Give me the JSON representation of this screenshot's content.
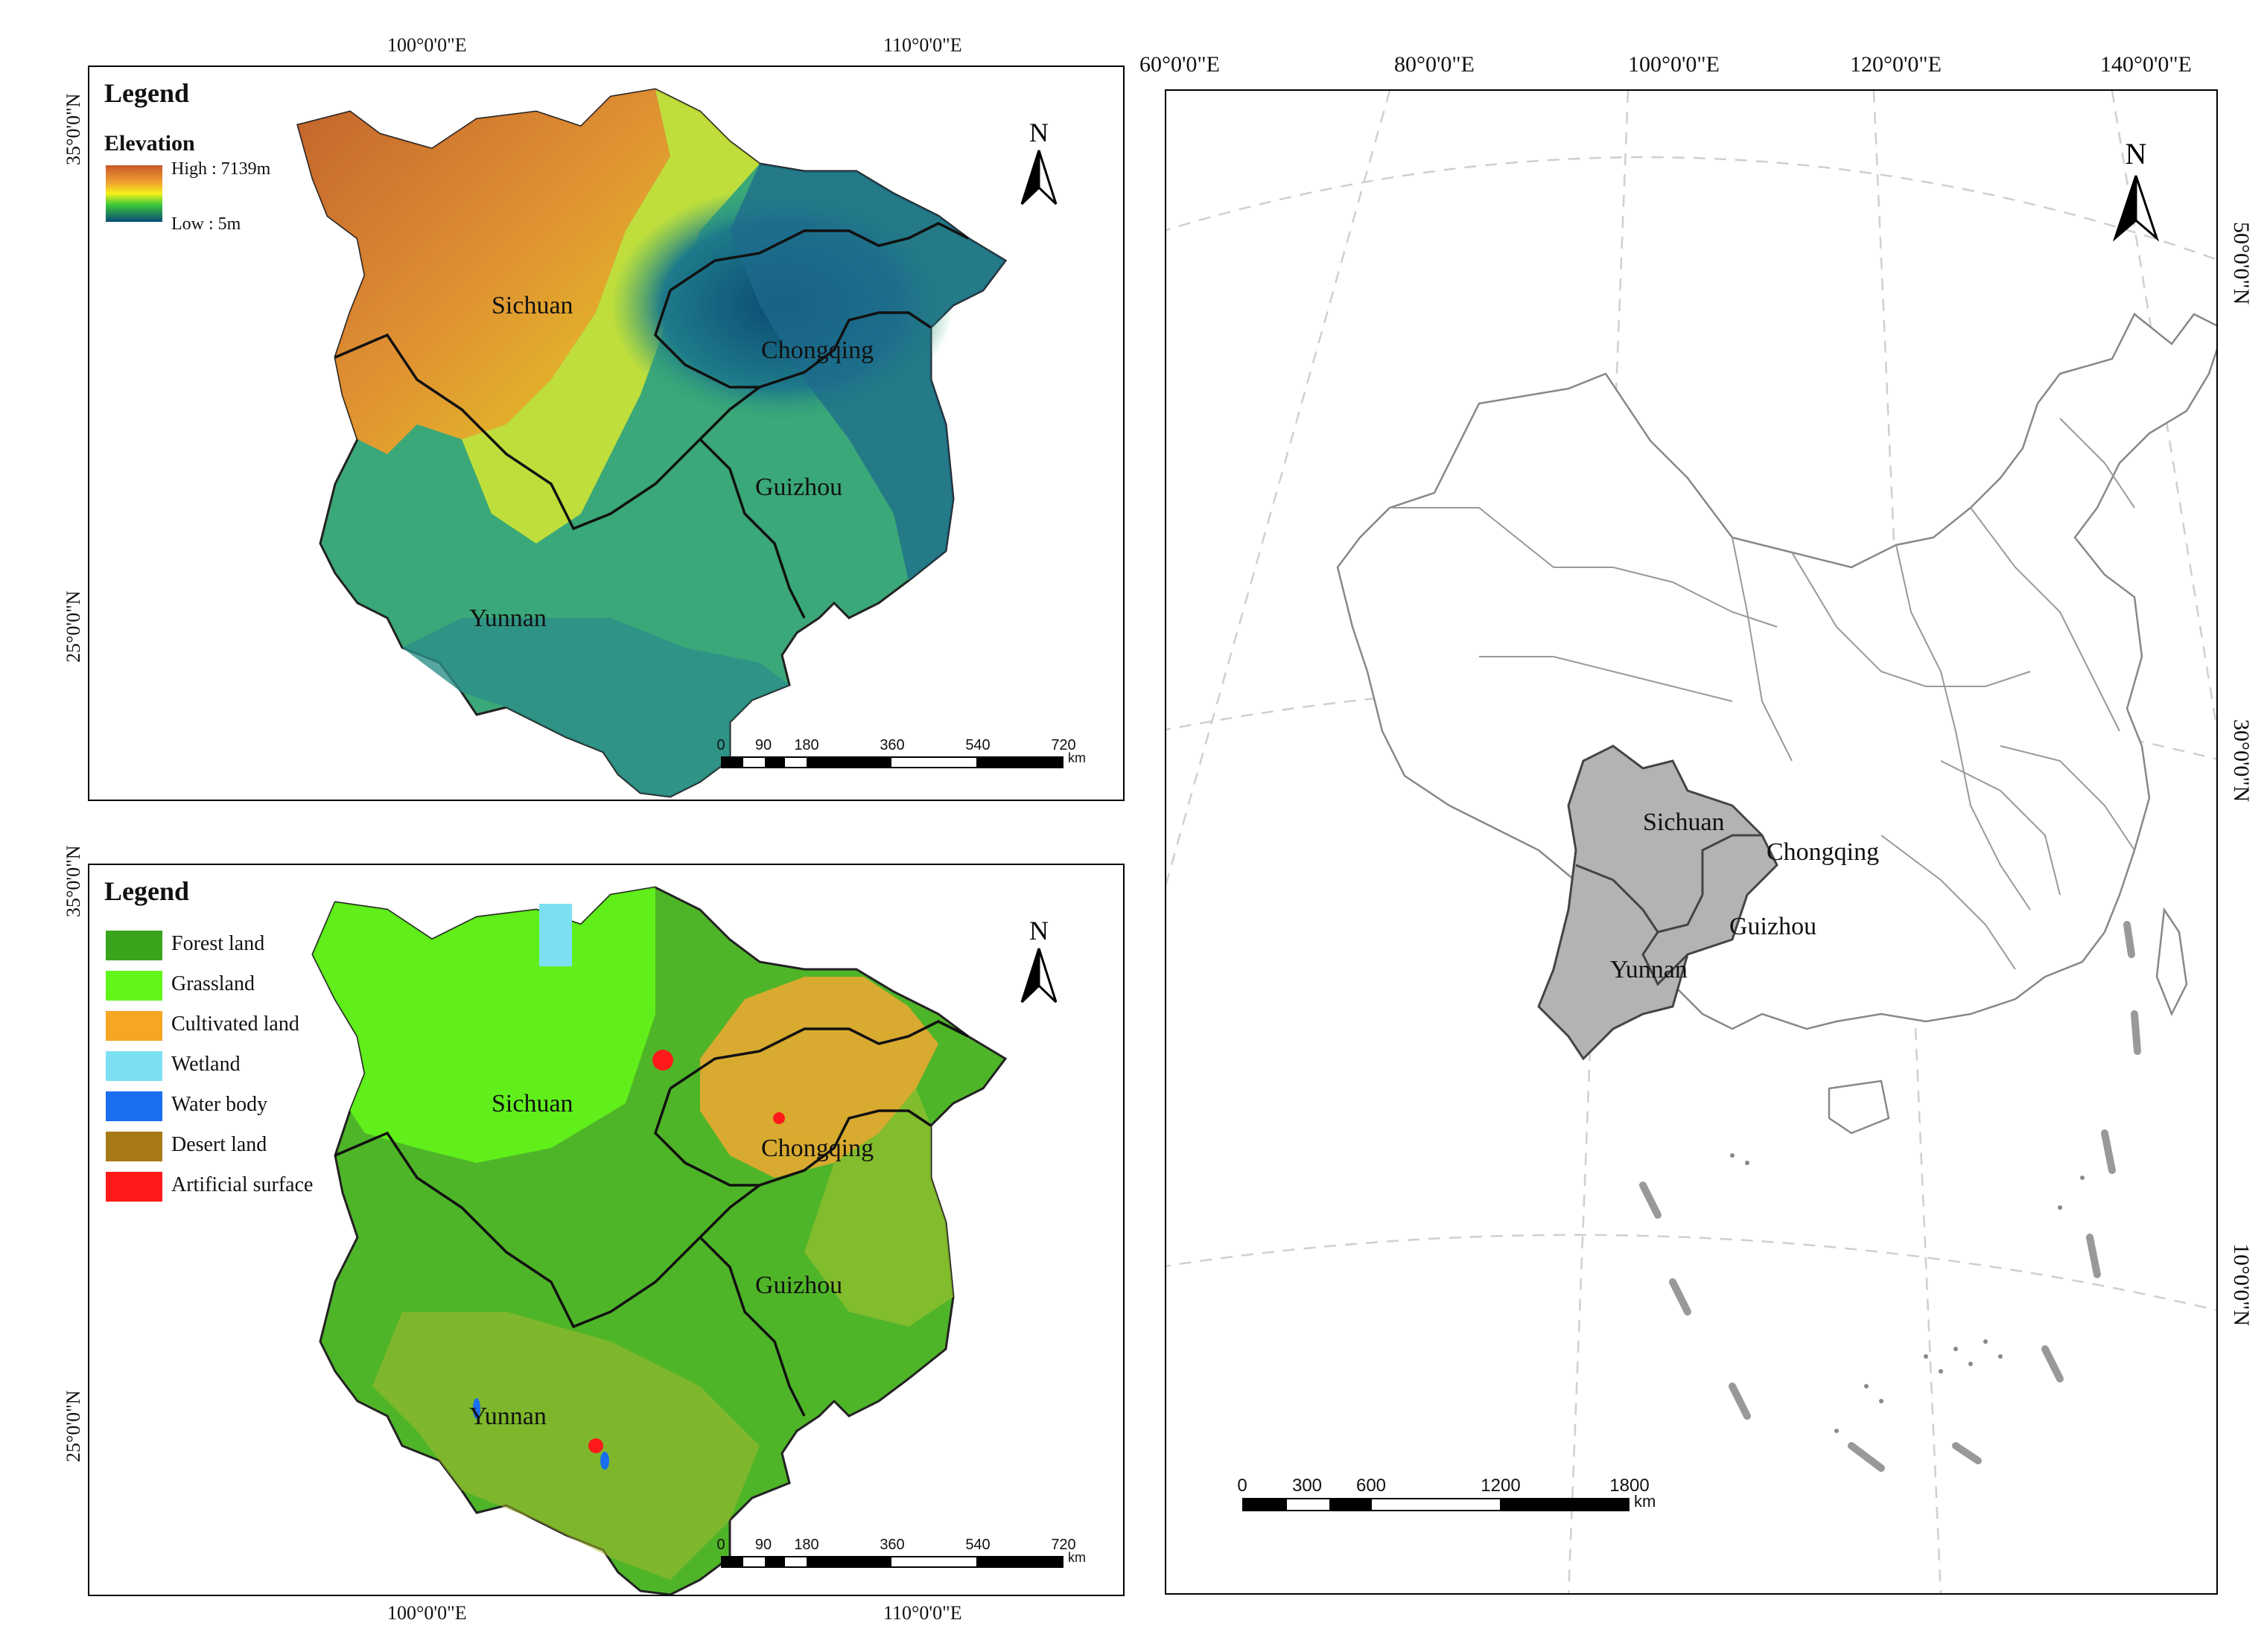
{
  "elevation_map": {
    "legend_title": "Legend",
    "legend_subtitle": "Elevation",
    "high_label": "High : 7139m",
    "low_label": "Low : 5m",
    "top_ticks": [
      "100°0'0\"E",
      "110°0'0\"E"
    ],
    "left_ticks": [
      "35°0'0\"N",
      "25°0'0\"N"
    ],
    "north": "N",
    "regions": [
      "Sichuan",
      "Chongqing",
      "Guizhou",
      "Yunnan"
    ],
    "scale_values": [
      "0",
      "90",
      "180",
      "360",
      "540",
      "720"
    ],
    "scale_unit": "km"
  },
  "landuse_map": {
    "legend_title": "Legend",
    "bottom_ticks": [
      "100°0'0\"E",
      "110°0'0\"E"
    ],
    "left_ticks": [
      "35°0'0\"N",
      "25°0'0\"N"
    ],
    "north": "N",
    "regions": [
      "Sichuan",
      "Chongqing",
      "Guizhou",
      "Yunnan"
    ],
    "classes": [
      {
        "label": "Forest land",
        "color": "#3aa41c"
      },
      {
        "label": "Grassland",
        "color": "#62f51a"
      },
      {
        "label": "Cultivated land",
        "color": "#f5a623"
      },
      {
        "label": "Wetland",
        "color": "#7de0f2"
      },
      {
        "label": "Water body",
        "color": "#1a6ef0"
      },
      {
        "label": "Desert land",
        "color": "#a87a16"
      },
      {
        "label": "Artificial surface",
        "color": "#ff1a1a"
      }
    ],
    "scale_values": [
      "0",
      "90",
      "180",
      "360",
      "540",
      "720"
    ],
    "scale_unit": "km"
  },
  "china_map": {
    "top_ticks": [
      "60°0'0\"E",
      "80°0'0\"E",
      "100°0'0\"E",
      "120°0'0\"E",
      "140°0'0\"E"
    ],
    "right_ticks": [
      "50°0'0\"N",
      "30°0'0\"N",
      "10°0'0\"N"
    ],
    "north": "N",
    "regions": [
      "Sichuan",
      "Chongqing",
      "Guizhou",
      "Yunnan"
    ],
    "highlight_color": "#b3b3b3",
    "scale_values": [
      "0",
      "300",
      "600",
      "1200",
      "1800"
    ],
    "scale_unit": "km"
  }
}
